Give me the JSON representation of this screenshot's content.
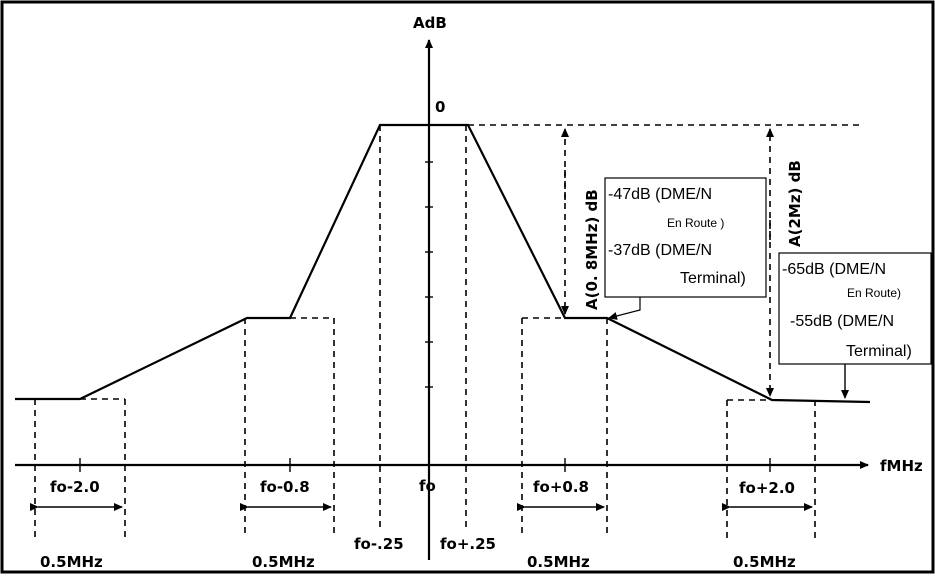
{
  "y_axis_label": "AdB",
  "x_axis_label": "fMHz",
  "zero_label": "0",
  "freq_labels": {
    "fo_minus_2": "fo-2.0",
    "fo_minus_08": "fo-0.8",
    "fo": "fo",
    "fo_plus_08": "fo+0.8",
    "fo_plus_2": "fo+2.0",
    "fo_minus_025": "fo-.25",
    "fo_plus_025": "fo+.25"
  },
  "bandwidth_label": "0.5MHz",
  "vertical_labels": {
    "a08": "A(0. 8MHz)  dB",
    "a2": "A(2Mz)  dB"
  },
  "callout_08": {
    "line1": "-47dB (DME/N",
    "line2": "En Route )",
    "line3": "-37dB (DME/N",
    "line4": "Terminal)"
  },
  "callout_2": {
    "line1": "-65dB (DME/N",
    "line2": "En Route)",
    "line3": "-55dB (DME/N",
    "line4": "Terminal)"
  }
}
